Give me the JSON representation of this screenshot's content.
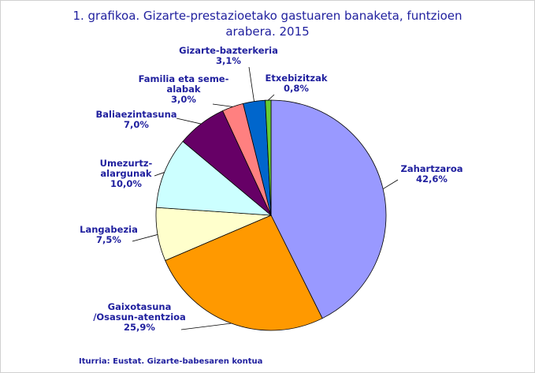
{
  "chart_data": {
    "type": "pie",
    "title_lines": [
      "1. grafikoa. Gizarte-prestazioetako gastuaren banaketa, funtzioen",
      "arabera. 2015"
    ],
    "slices": [
      {
        "label_lines": [
          "Zahartzaroa"
        ],
        "value_text": "42,6%",
        "value": 42.6,
        "color": "#9999ff"
      },
      {
        "label_lines": [
          "Gaixotasuna",
          "/Osasun-atentzioa"
        ],
        "value_text": "25,9%",
        "value": 25.9,
        "color": "#ff9900"
      },
      {
        "label_lines": [
          "Langabezia"
        ],
        "value_text": "7,5%",
        "value": 7.5,
        "color": "#ffffcc"
      },
      {
        "label_lines": [
          "Umezurtz-",
          "alargunak"
        ],
        "value_text": "10,0%",
        "value": 10.0,
        "color": "#ccffff"
      },
      {
        "label_lines": [
          "Baliaezintasuna"
        ],
        "value_text": "7,0%",
        "value": 7.0,
        "color": "#660066"
      },
      {
        "label_lines": [
          "Familia eta seme-",
          "alabak"
        ],
        "value_text": "3,0%",
        "value": 3.0,
        "color": "#ff8080"
      },
      {
        "label_lines": [
          "Gizarte-bazterkeria"
        ],
        "value_text": "3,1%",
        "value": 3.1,
        "color": "#0066cc"
      },
      {
        "label_lines": [
          "Etxebizitzak"
        ],
        "value_text": "0,8%",
        "value": 0.8,
        "color": "#66cc33"
      }
    ],
    "source": "Iturria: Eustat. Gizarte-babesaren kontua"
  }
}
